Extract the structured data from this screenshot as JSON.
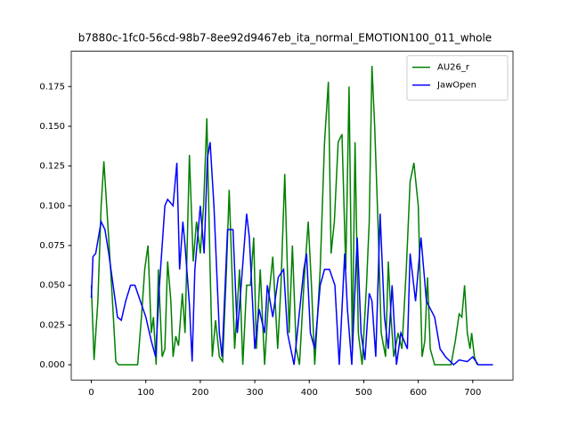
{
  "chart_data": {
    "type": "line",
    "title": "b7880c-1fc0-56cd-98b7-8ee92d9467eb_ita_normal_EMOTION100_011_whole",
    "xlim": [
      -36.85,
      773.85
    ],
    "ylim": [
      -0.0096,
      0.1972
    ],
    "xticks": [
      0,
      100,
      200,
      300,
      400,
      500,
      600,
      700
    ],
    "yticks": [
      {
        "value": 0,
        "label": "0.000"
      },
      {
        "value": 0.025,
        "label": "0.025"
      },
      {
        "value": 0.05,
        "label": "0.050"
      },
      {
        "value": 0.075,
        "label": "0.075"
      },
      {
        "value": 0.1,
        "label": "0.100"
      },
      {
        "value": 0.125,
        "label": "0.125"
      },
      {
        "value": 0.15,
        "label": "0.150"
      },
      {
        "value": 0.175,
        "label": "0.175"
      }
    ],
    "grid": false,
    "legend": "upper right",
    "series": [
      {
        "name": "AU26_r",
        "color": "#008000",
        "x": [
          0,
          5,
          12,
          18,
          23,
          30,
          38,
          45,
          50,
          85,
          92,
          98,
          104,
          110,
          114,
          119,
          123,
          130,
          135,
          140,
          146,
          150,
          155,
          160,
          167,
          172,
          180,
          187,
          193,
          200,
          206,
          212,
          218,
          222,
          228,
          235,
          241,
          248,
          253,
          258,
          263,
          272,
          278,
          285,
          292,
          298,
          303,
          310,
          318,
          325,
          333,
          342,
          348,
          355,
          363,
          369,
          376,
          382,
          390,
          398,
          404,
          410,
          420,
          428,
          435,
          440,
          446,
          453,
          460,
          467,
          473,
          479,
          484,
          490,
          497,
          505,
          510,
          515,
          520,
          526,
          532,
          540,
          545,
          550,
          555,
          563,
          570,
          578,
          585,
          592,
          600,
          607,
          612,
          617,
          622,
          630,
          660,
          668,
          675,
          680,
          685,
          690,
          695,
          698,
          703,
          708
        ],
        "values": [
          0.05,
          0.003,
          0.04,
          0.1,
          0.128,
          0.09,
          0.045,
          0.002,
          0,
          0,
          0.03,
          0.06,
          0.075,
          0.02,
          0.03,
          0,
          0.06,
          0.005,
          0.01,
          0.065,
          0.04,
          0.005,
          0.018,
          0.012,
          0.045,
          0.02,
          0.132,
          0.065,
          0.09,
          0.07,
          0.1,
          0.155,
          0.06,
          0.005,
          0.028,
          0.005,
          0.002,
          0.06,
          0.11,
          0.06,
          0.01,
          0.06,
          0,
          0.05,
          0.05,
          0.08,
          0.01,
          0.06,
          0,
          0.04,
          0.068,
          0.01,
          0.05,
          0.12,
          0.02,
          0.075,
          0.01,
          0,
          0.05,
          0.09,
          0.05,
          0,
          0.06,
          0.14,
          0.178,
          0.07,
          0.09,
          0.14,
          0.145,
          0.06,
          0.175,
          0.01,
          0.14,
          0.02,
          0,
          0.05,
          0.09,
          0.188,
          0.15,
          0.09,
          0.02,
          0.005,
          0.065,
          0.03,
          0.005,
          0.02,
          0.01,
          0.06,
          0.115,
          0.127,
          0.1,
          0.005,
          0.015,
          0.055,
          0.01,
          0,
          0,
          0.015,
          0.032,
          0.03,
          0.05,
          0.02,
          0.01,
          0.02,
          0.005,
          0
        ]
      },
      {
        "name": "JawOpen",
        "color": "#0000ff",
        "x": [
          0,
          3,
          8,
          18,
          25,
          32,
          40,
          48,
          55,
          63,
          72,
          80,
          90,
          100,
          110,
          118,
          125,
          135,
          140,
          150,
          157,
          162,
          168,
          172,
          180,
          185,
          190,
          200,
          207,
          213,
          218,
          225,
          235,
          240,
          250,
          260,
          268,
          275,
          285,
          290,
          300,
          308,
          318,
          323,
          333,
          343,
          353,
          360,
          372,
          390,
          395,
          402,
          410,
          420,
          428,
          437,
          447,
          455,
          465,
          470,
          478,
          488,
          495,
          502,
          510,
          515,
          522,
          530,
          538,
          545,
          552,
          560,
          568,
          580,
          585,
          595,
          605,
          615,
          630,
          640,
          650,
          665,
          675,
          690,
          700,
          710,
          737
        ],
        "values": [
          0.042,
          0.068,
          0.07,
          0.09,
          0.085,
          0.07,
          0.05,
          0.03,
          0.028,
          0.04,
          0.05,
          0.05,
          0.04,
          0.03,
          0.015,
          0.005,
          0.05,
          0.1,
          0.104,
          0.1,
          0.127,
          0.06,
          0.09,
          0.075,
          0.038,
          0.002,
          0.06,
          0.1,
          0.07,
          0.13,
          0.14,
          0.1,
          0.02,
          0.005,
          0.085,
          0.085,
          0.02,
          0.05,
          0.095,
          0.08,
          0.01,
          0.035,
          0.02,
          0.05,
          0.03,
          0.055,
          0.06,
          0.02,
          0,
          0.06,
          0.07,
          0.02,
          0.01,
          0.05,
          0.06,
          0.06,
          0.05,
          0,
          0.07,
          0.035,
          0,
          0.08,
          0.02,
          0.003,
          0.045,
          0.04,
          0.005,
          0.095,
          0.03,
          0.01,
          0.05,
          0,
          0.02,
          0.01,
          0.07,
          0.04,
          0.08,
          0.04,
          0.03,
          0.01,
          0.005,
          0,
          0.003,
          0.002,
          0.005,
          0,
          0
        ]
      }
    ]
  }
}
